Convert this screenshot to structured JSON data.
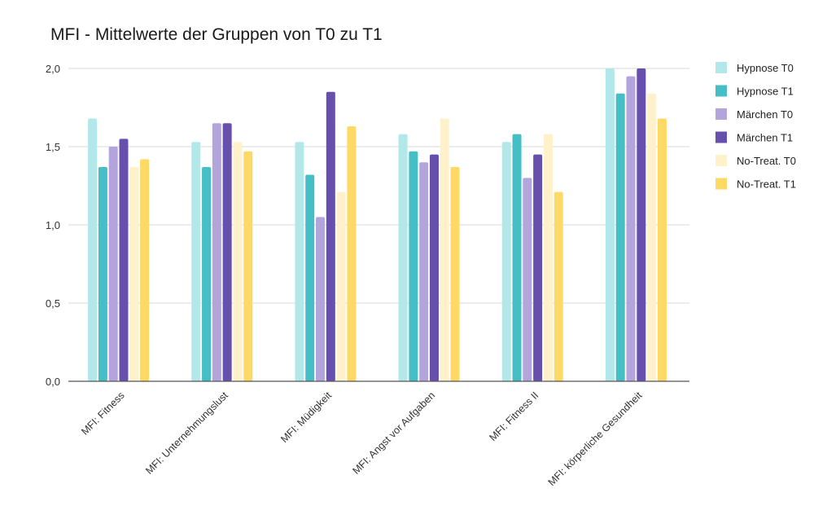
{
  "chart_data": {
    "type": "bar",
    "title": "MFI - Mittelwerte der Gruppen von T0 zu T1",
    "xlabel": "",
    "ylabel": "",
    "ylim": [
      0,
      2
    ],
    "y_ticks": [
      "0,0",
      "0,5",
      "1,0",
      "1,5",
      "2,0"
    ],
    "y_tick_values": [
      0,
      0.5,
      1,
      1.5,
      2
    ],
    "grid": true,
    "legend_position": "right",
    "categories": [
      "MFI: Fitness",
      "MFI: Unternehmungslust",
      "MFI: Müdigkeit",
      "MFI: Angst vor Aufgaben",
      "MFI: Fitness II",
      "MFI: körperliche Gesundheit"
    ],
    "series": [
      {
        "name": "Hypnose T0",
        "color": "#b2e8ea",
        "values": [
          1.68,
          1.53,
          1.53,
          1.58,
          1.53,
          2.0
        ]
      },
      {
        "name": "Hypnose T1",
        "color": "#46bec6",
        "values": [
          1.37,
          1.37,
          1.32,
          1.47,
          1.58,
          1.84
        ]
      },
      {
        "name": "Märchen T0",
        "color": "#b3a4dc",
        "values": [
          1.5,
          1.65,
          1.05,
          1.4,
          1.3,
          1.95
        ]
      },
      {
        "name": "Märchen T1",
        "color": "#6750ad",
        "values": [
          1.55,
          1.65,
          1.85,
          1.45,
          1.45,
          2.0
        ]
      },
      {
        "name": "No-Treat. T0",
        "color": "#fff1c9",
        "values": [
          1.37,
          1.53,
          1.21,
          1.68,
          1.58,
          1.84
        ]
      },
      {
        "name": "No-Treat. T1",
        "color": "#ffd966",
        "values": [
          1.42,
          1.47,
          1.63,
          1.37,
          1.21,
          1.68
        ]
      }
    ]
  }
}
